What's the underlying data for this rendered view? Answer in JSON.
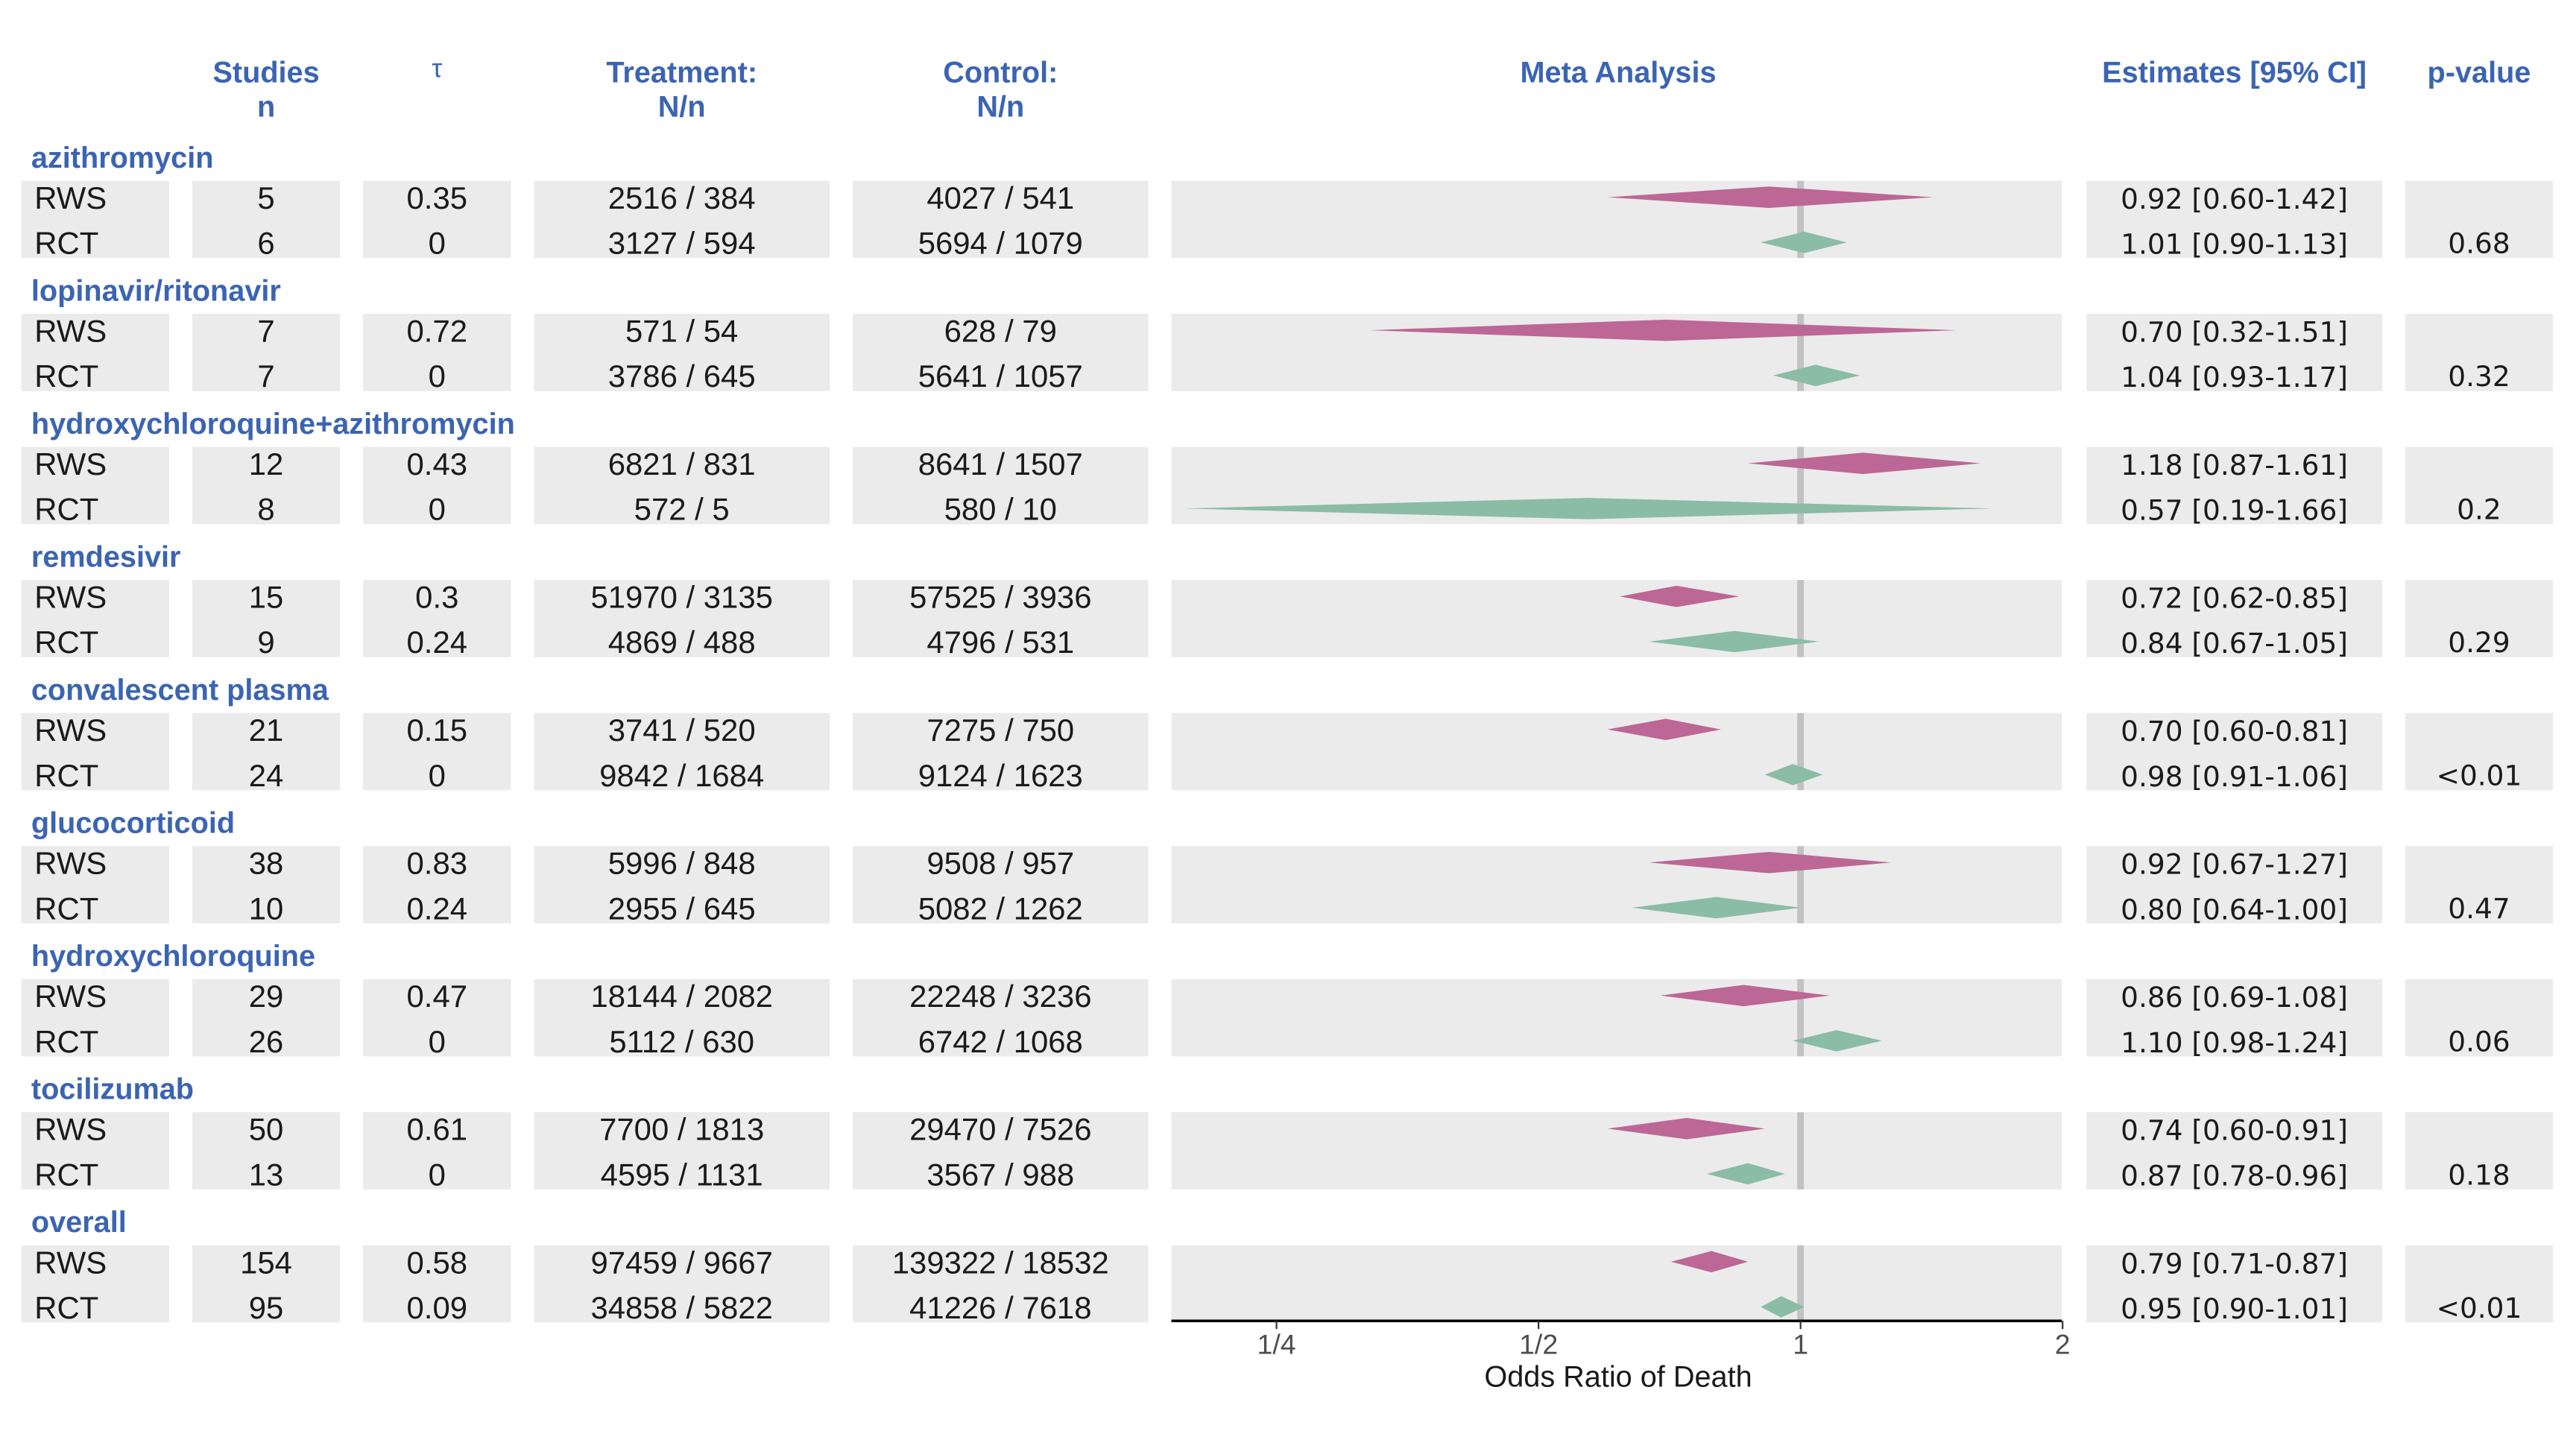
{
  "colors": {
    "rws": "#bc6796",
    "rct": "#8bbca6",
    "band": "#ebebeb",
    "refline": "#c2c2c2",
    "header": "#3b64b2"
  },
  "header": {
    "studies": "Studies",
    "studies_sub": "n",
    "tau": "τ",
    "treatment": "Treatment:",
    "treatment_sub": "N/n",
    "control": "Control:",
    "control_sub": "N/n",
    "meta": "Meta Analysis",
    "estimates": "Estimates [95% CI]",
    "pvalue": "p-value"
  },
  "groups": [
    {
      "name": "azithromycin",
      "p_value": "0.68",
      "rows": [
        {
          "type": "RWS",
          "n": "5",
          "tau": "0.35",
          "treatment": "2516 / 384",
          "control": "4027 / 541",
          "ci_text": "0.92 [0.60-1.42]"
        },
        {
          "type": "RCT",
          "n": "6",
          "tau": "0",
          "treatment": "3127 / 594",
          "control": "5694 / 1079",
          "ci_text": "1.01 [0.90-1.13]"
        }
      ]
    },
    {
      "name": "lopinavir/ritonavir",
      "p_value": "0.32",
      "rows": [
        {
          "type": "RWS",
          "n": "7",
          "tau": "0.72",
          "treatment": "571 / 54",
          "control": "628 / 79",
          "ci_text": "0.70 [0.32-1.51]"
        },
        {
          "type": "RCT",
          "n": "7",
          "tau": "0",
          "treatment": "3786 / 645",
          "control": "5641 / 1057",
          "ci_text": "1.04 [0.93-1.17]"
        }
      ]
    },
    {
      "name": "hydroxychloroquine+azithromycin",
      "p_value": "0.2",
      "rows": [
        {
          "type": "RWS",
          "n": "12",
          "tau": "0.43",
          "treatment": "6821 / 831",
          "control": "8641 / 1507",
          "ci_text": "1.18 [0.87-1.61]"
        },
        {
          "type": "RCT",
          "n": "8",
          "tau": "0",
          "treatment": "572 / 5",
          "control": "580 / 10",
          "ci_text": "0.57 [0.19-1.66]"
        }
      ]
    },
    {
      "name": "remdesivir",
      "p_value": "0.29",
      "rows": [
        {
          "type": "RWS",
          "n": "15",
          "tau": "0.3",
          "treatment": "51970 / 3135",
          "control": "57525 / 3936",
          "ci_text": "0.72 [0.62-0.85]"
        },
        {
          "type": "RCT",
          "n": "9",
          "tau": "0.24",
          "treatment": "4869 / 488",
          "control": "4796 / 531",
          "ci_text": "0.84 [0.67-1.05]"
        }
      ]
    },
    {
      "name": "convalescent plasma",
      "p_value": "<0.01",
      "rows": [
        {
          "type": "RWS",
          "n": "21",
          "tau": "0.15",
          "treatment": "3741 / 520",
          "control": "7275 / 750",
          "ci_text": "0.70 [0.60-0.81]"
        },
        {
          "type": "RCT",
          "n": "24",
          "tau": "0",
          "treatment": "9842 / 1684",
          "control": "9124 / 1623",
          "ci_text": "0.98 [0.91-1.06]"
        }
      ]
    },
    {
      "name": "glucocorticoid",
      "p_value": "0.47",
      "rows": [
        {
          "type": "RWS",
          "n": "38",
          "tau": "0.83",
          "treatment": "5996 / 848",
          "control": "9508 / 957",
          "ci_text": "0.92 [0.67-1.27]"
        },
        {
          "type": "RCT",
          "n": "10",
          "tau": "0.24",
          "treatment": "2955 / 645",
          "control": "5082 / 1262",
          "ci_text": "0.80 [0.64-1.00]"
        }
      ]
    },
    {
      "name": "hydroxychloroquine",
      "p_value": "0.06",
      "rows": [
        {
          "type": "RWS",
          "n": "29",
          "tau": "0.47",
          "treatment": "18144 / 2082",
          "control": "22248 / 3236",
          "ci_text": "0.86 [0.69-1.08]"
        },
        {
          "type": "RCT",
          "n": "26",
          "tau": "0",
          "treatment": "5112 / 630",
          "control": "6742 / 1068",
          "ci_text": "1.10 [0.98-1.24]"
        }
      ]
    },
    {
      "name": "tocilizumab",
      "p_value": "0.18",
      "rows": [
        {
          "type": "RWS",
          "n": "50",
          "tau": "0.61",
          "treatment": "7700 / 1813",
          "control": "29470 / 7526",
          "ci_text": "0.74 [0.60-0.91]"
        },
        {
          "type": "RCT",
          "n": "13",
          "tau": "0",
          "treatment": "4595 / 1131",
          "control": "3567 / 988",
          "ci_text": "0.87 [0.78-0.96]"
        }
      ]
    },
    {
      "name": "overall",
      "p_value": "<0.01",
      "rows": [
        {
          "type": "RWS",
          "n": "154",
          "tau": "0.58",
          "treatment": "97459 / 9667",
          "control": "139322 / 18532",
          "ci_text": "0.79 [0.71-0.87]"
        },
        {
          "type": "RCT",
          "n": "95",
          "tau": "0.09",
          "treatment": "34858 / 5822",
          "control": "41226 / 7618",
          "ci_text": "0.95 [0.90-1.01]"
        }
      ]
    }
  ],
  "chart_data": {
    "type": "forest",
    "title": "Meta Analysis",
    "xlabel": "Odds Ratio of Death",
    "xscale": "log2",
    "xlim": [
      0.19,
      2
    ],
    "reference_line": 1,
    "x_ticks": [
      0.25,
      0.5,
      1,
      2
    ],
    "x_tick_labels": [
      "1/4",
      "1/2",
      "1",
      "2"
    ],
    "series": [
      {
        "name": "RWS",
        "estimates": [
          0.92,
          0.7,
          1.18,
          0.72,
          0.7,
          0.92,
          0.86,
          0.74,
          0.79
        ],
        "lower": [
          0.6,
          0.32,
          0.87,
          0.62,
          0.6,
          0.67,
          0.69,
          0.6,
          0.71
        ],
        "upper": [
          1.42,
          1.51,
          1.61,
          0.85,
          0.81,
          1.27,
          1.08,
          0.91,
          0.87
        ]
      },
      {
        "name": "RCT",
        "estimates": [
          1.01,
          1.04,
          0.57,
          0.84,
          0.98,
          0.8,
          1.1,
          0.87,
          0.95
        ],
        "lower": [
          0.9,
          0.93,
          0.19,
          0.67,
          0.91,
          0.64,
          0.98,
          0.78,
          0.9
        ],
        "upper": [
          1.13,
          1.17,
          1.66,
          1.05,
          1.06,
          1.0,
          1.24,
          0.96,
          1.01
        ]
      }
    ]
  }
}
